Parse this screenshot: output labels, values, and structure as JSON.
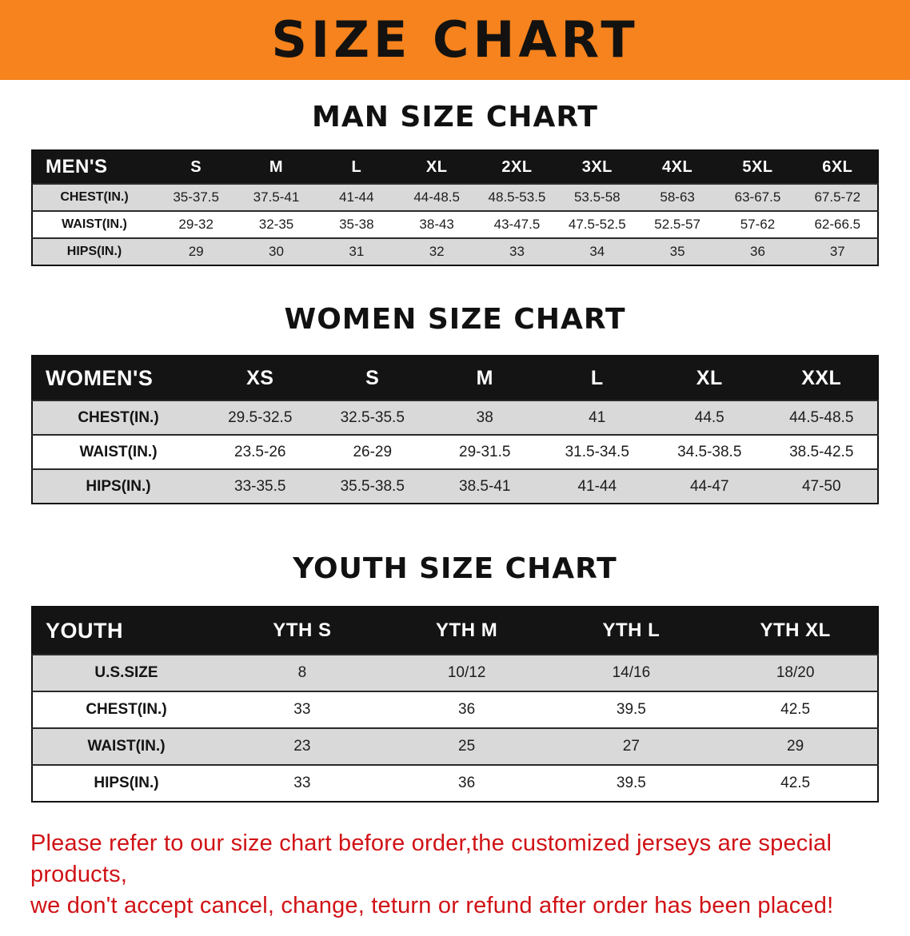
{
  "banner": {
    "title": "SIZE CHART"
  },
  "sections": [
    {
      "id": "men",
      "heading": "MAN SIZE CHART",
      "table": {
        "label": "MEN'S",
        "columns": [
          "S",
          "M",
          "L",
          "XL",
          "2XL",
          "3XL",
          "4XL",
          "5XL",
          "6XL"
        ],
        "rows": [
          {
            "label": "CHEST(IN.)",
            "values": [
              "35-37.5",
              "37.5-41",
              "41-44",
              "44-48.5",
              "48.5-53.5",
              "53.5-58",
              "58-63",
              "63-67.5",
              "67.5-72"
            ]
          },
          {
            "label": "WAIST(IN.)",
            "values": [
              "29-32",
              "32-35",
              "35-38",
              "38-43",
              "43-47.5",
              "47.5-52.5",
              "52.5-57",
              "57-62",
              "62-66.5"
            ]
          },
          {
            "label": "HIPS(IN.)",
            "values": [
              "29",
              "30",
              "31",
              "32",
              "33",
              "34",
              "35",
              "36",
              "37"
            ]
          }
        ]
      }
    },
    {
      "id": "women",
      "heading": "WOMEN SIZE CHART",
      "table": {
        "label": "WOMEN'S",
        "columns": [
          "XS",
          "S",
          "M",
          "L",
          "XL",
          "XXL"
        ],
        "rows": [
          {
            "label": "CHEST(IN.)",
            "values": [
              "29.5-32.5",
              "32.5-35.5",
              "38",
              "41",
              "44.5",
              "44.5-48.5"
            ]
          },
          {
            "label": "WAIST(IN.)",
            "values": [
              "23.5-26",
              "26-29",
              "29-31.5",
              "31.5-34.5",
              "34.5-38.5",
              "38.5-42.5"
            ]
          },
          {
            "label": "HIPS(IN.)",
            "values": [
              "33-35.5",
              "35.5-38.5",
              "38.5-41",
              "41-44",
              "44-47",
              "47-50"
            ]
          }
        ]
      }
    },
    {
      "id": "youth",
      "heading": "YOUTH SIZE CHART",
      "table": {
        "label": "YOUTH",
        "columns": [
          "YTH S",
          "YTH M",
          "YTH L",
          "YTH XL"
        ],
        "rows": [
          {
            "label": "U.S.SIZE",
            "values": [
              "8",
              "10/12",
              "14/16",
              "18/20"
            ]
          },
          {
            "label": "CHEST(IN.)",
            "values": [
              "33",
              "36",
              "39.5",
              "42.5"
            ]
          },
          {
            "label": "WAIST(IN.)",
            "values": [
              "23",
              "25",
              "27",
              "29"
            ]
          },
          {
            "label": "HIPS(IN.)",
            "values": [
              "33",
              "36",
              "39.5",
              "42.5"
            ]
          }
        ]
      }
    }
  ],
  "disclaimer": {
    "line1": "Please refer to our size chart before order,the customized jerseys are special products,",
    "line2": "we don't accept cancel, change, teturn or refund after order has been placed!"
  },
  "colors": {
    "banner_bg": "#f6831d",
    "header_row_bg": "#141414",
    "shaded_row_bg": "#d9d9d9",
    "disclaimer_text": "#d01216"
  }
}
